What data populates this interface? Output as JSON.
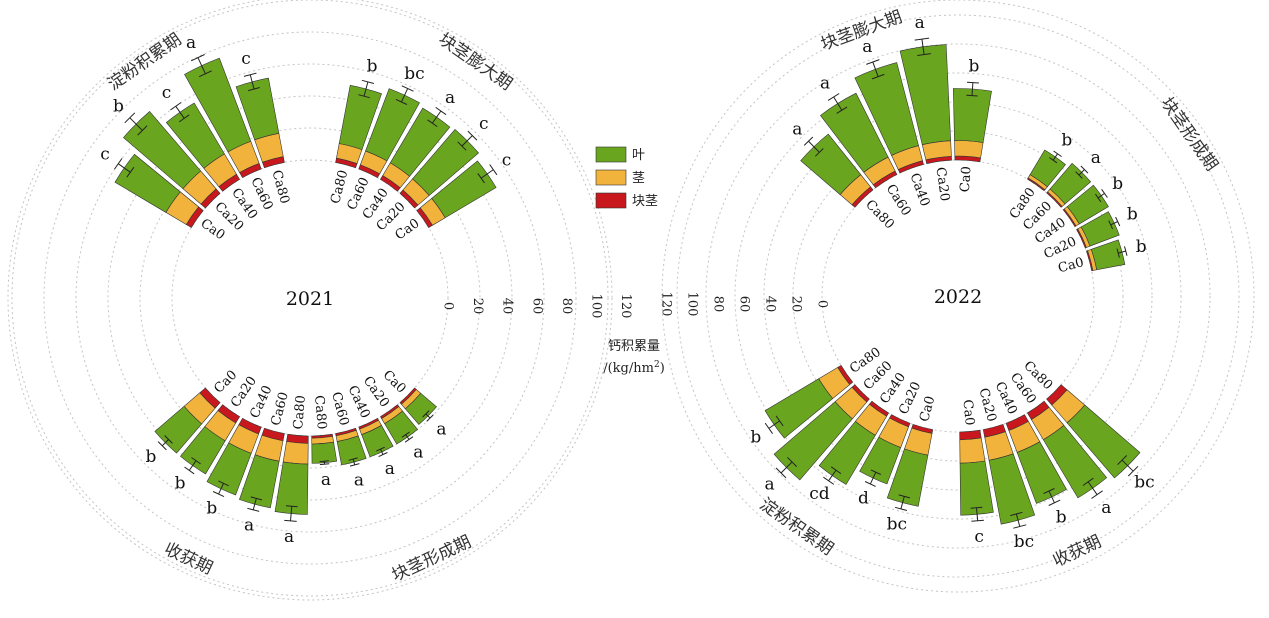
{
  "chart_data": {
    "type": "radial-stacked-bar",
    "legend": {
      "position": "center-top",
      "items": [
        {
          "label": "叶",
          "color": "#6aa51f"
        },
        {
          "label": "茎",
          "color": "#f1b33c"
        },
        {
          "label": "块茎",
          "color": "#c8181e"
        }
      ]
    },
    "axis": {
      "title_line1": "钙积累量",
      "title_line2": "/(kg/hm",
      "title_sup": "2",
      "title_end": ")",
      "ticks": [
        0,
        20,
        40,
        60,
        80,
        100,
        120
      ],
      "range": [
        0,
        140
      ]
    },
    "treatments": [
      "Ca0",
      "Ca20",
      "Ca40",
      "Ca60",
      "Ca80"
    ],
    "panels": [
      {
        "year": "2021",
        "stages": [
          {
            "name": "块茎形成期",
            "labels": [
              "Ca0",
              "Ca20",
              "Ca40",
              "Ca60",
              "Ca80"
            ],
            "tuber": [
              1.5,
              1.5,
              1.5,
              1.5,
              1.5
            ],
            "stem": [
              4,
              4,
              4,
              4,
              4
            ],
            "leaf": [
              14,
              16,
              16,
              16,
              13
            ],
            "err": [
              2,
              2,
              2,
              2,
              1
            ],
            "sig": [
              "a",
              "a",
              "a",
              "a",
              "a"
            ]
          },
          {
            "name": "收获期",
            "labels": [
              "Ca80",
              "Ca60",
              "Ca40",
              "Ca20",
              "Ca0"
            ],
            "tuber": [
              5,
              5,
              5,
              5,
              5
            ],
            "stem": [
              14,
              14,
              14,
              14,
              14
            ],
            "leaf": [
              34,
              32,
              30,
              26,
              26
            ],
            "err": [
              5,
              4,
              4,
              4,
              3
            ],
            "sig": [
              "a",
              "a",
              "b",
              "b",
              "b"
            ]
          },
          {
            "name": "淀粉积累期",
            "labels": [
              "Ca0",
              "Ca20",
              "Ca40",
              "Ca60",
              "Ca80"
            ],
            "tuber": [
              4,
              4,
              4,
              4,
              4
            ],
            "stem": [
              16,
              16,
              16,
              16,
              16
            ],
            "leaf": [
              40,
              53,
              40,
              60,
              38
            ],
            "err": [
              5,
              6,
              5,
              6,
              5
            ],
            "sig": [
              "c",
              "b",
              "c",
              "a",
              "c"
            ]
          },
          {
            "name": "块茎膨大期",
            "labels": [
              "Ca80",
              "Ca60",
              "Ca40",
              "Ca20",
              "Ca0"
            ],
            "tuber": [
              3,
              3,
              3,
              3,
              3
            ],
            "stem": [
              10,
              10,
              10,
              10,
              10
            ],
            "leaf": [
              40,
              45,
              43,
              44,
              40
            ],
            "err": [
              5,
              5,
              5,
              5,
              5
            ],
            "sig": [
              "b",
              "bc",
              "a",
              "c",
              "c"
            ]
          }
        ]
      },
      {
        "year": "2022",
        "stages": [
          {
            "name": "块茎膨大期",
            "labels": [
              "Ca80",
              "Ca60",
              "Ca40",
              "Ca20",
              "Ca0"
            ],
            "tuber": [
              3,
              3,
              3,
              3,
              3
            ],
            "stem": [
              12,
              12,
              12,
              12,
              12
            ],
            "leaf": [
              40,
              55,
              66,
              74,
              40
            ],
            "err": [
              6,
              6,
              6,
              6,
              5
            ],
            "sig": [
              "a",
              "a",
              "a",
              "a",
              "b"
            ]
          },
          {
            "name": "块茎形成期",
            "labels": [
              "Ca80",
              "Ca60",
              "Ca40",
              "Ca20",
              "Ca0"
            ],
            "tuber": [
              1,
              1,
              1,
              1,
              1
            ],
            "stem": [
              3,
              3,
              3,
              3,
              3
            ],
            "leaf": [
              22,
              26,
              26,
              24,
              22
            ],
            "err": [
              3,
              3,
              3,
              3,
              3
            ],
            "sig": [
              "b",
              "a",
              "b",
              "b",
              "b"
            ]
          },
          {
            "name": "收获期",
            "labels": [
              "Ca80",
              "Ca60",
              "Ca40",
              "Ca20",
              "Ca0"
            ],
            "tuber": [
              6,
              6,
              6,
              6,
              6
            ],
            "stem": [
              18,
              18,
              18,
              18,
              18
            ],
            "leaf": [
              56,
              52,
              42,
              50,
              40
            ],
            "err": [
              6,
              6,
              5,
              5,
              5
            ],
            "sig": [
              "bc",
              "a",
              "b",
              "bc",
              "c"
            ]
          },
          {
            "name": "淀粉积累期",
            "labels": [
              "Ca0",
              "Ca20",
              "Ca40",
              "Ca60",
              "Ca80"
            ],
            "tuber": [
              3,
              3,
              3,
              3,
              3
            ],
            "stem": [
              17,
              17,
              17,
              17,
              17
            ],
            "leaf": [
              40,
              30,
              44,
              62,
              48
            ],
            "err": [
              5,
              5,
              5,
              6,
              5
            ],
            "sig": [
              "bc",
              "d",
              "cd",
              "a",
              "b"
            ]
          }
        ]
      }
    ]
  }
}
